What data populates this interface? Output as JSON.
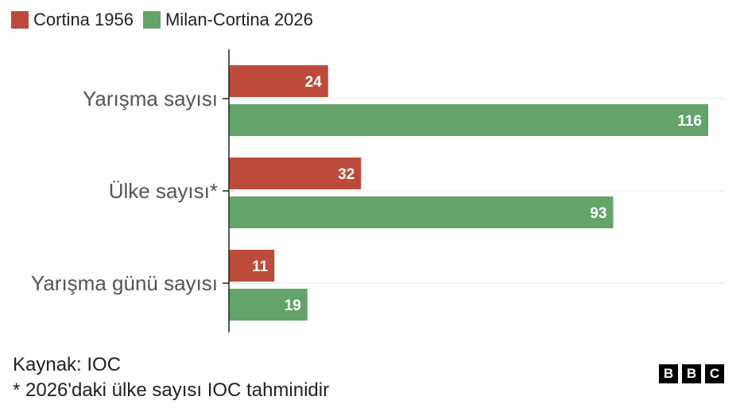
{
  "legend": [
    {
      "label": "Cortina 1956",
      "color": "#bc4b3c"
    },
    {
      "label": "Milan-Cortina 2026",
      "color": "#64a46a"
    }
  ],
  "chart_data": {
    "type": "bar",
    "orientation": "horizontal",
    "categories": [
      "Yarışma sayısı",
      "Ülke sayısı*",
      "Yarışma günü sayısı"
    ],
    "series": [
      {
        "name": "Cortina 1956",
        "values": [
          24,
          32,
          11
        ],
        "color": "#bc4b3c"
      },
      {
        "name": "Milan-Cortina 2026",
        "values": [
          116,
          93,
          19
        ],
        "color": "#64a46a"
      }
    ],
    "xlim": [
      0,
      120
    ],
    "grid": true,
    "legend_position": "top-left",
    "data_labels": true
  },
  "footer": {
    "source": "Kaynak: IOC",
    "note": "* 2026'daki ülke sayısı IOC tahminidir"
  },
  "logo": {
    "letters": [
      "B",
      "B",
      "C"
    ]
  }
}
